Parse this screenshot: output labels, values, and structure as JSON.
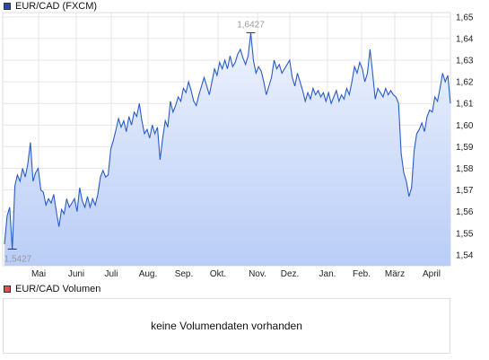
{
  "price_legend": {
    "label": "EUR/CAD (FXCM)",
    "color": "#2a4aa0"
  },
  "volume_legend": {
    "label": "EUR/CAD Volumen",
    "color": "#e05050"
  },
  "volume_panel": {
    "message": "keine Volumendaten vorhanden"
  },
  "chart_data": {
    "type": "area",
    "title": "EUR/CAD (FXCM)",
    "x_ticks": [
      "Mai",
      "Juni",
      "Juli",
      "Aug.",
      "Sep.",
      "Okt.",
      "Nov.",
      "Dez.",
      "Jan.",
      "Feb.",
      "März",
      "April"
    ],
    "y_ticks": [
      "1,54",
      "1,55",
      "1,56",
      "1,57",
      "1,58",
      "1,59",
      "1,60",
      "1,61",
      "1,62",
      "1,63",
      "1,64",
      "1,65"
    ],
    "ylim": [
      1.535,
      1.652
    ],
    "grid": true,
    "line_color": "#2a5bc8",
    "fill_color_top": "#eef3fd",
    "fill_color_bottom": "#b9cdf6",
    "annotations": [
      {
        "label": "1,6427",
        "x": "Okt."
      },
      {
        "label": "1,5427",
        "x": "start"
      }
    ],
    "series": [
      {
        "values": [
          1.545,
          1.558,
          1.562,
          1.5427,
          1.572,
          1.577,
          1.574,
          1.58,
          1.576,
          1.582,
          1.592,
          1.574,
          1.578,
          1.58,
          1.57,
          1.569,
          1.563,
          1.566,
          1.564,
          1.568,
          1.56,
          1.553,
          1.561,
          1.559,
          1.566,
          1.562,
          1.564,
          1.566,
          1.56,
          1.571,
          1.565,
          1.562,
          1.567,
          1.562,
          1.566,
          1.563,
          1.568,
          1.576,
          1.579,
          1.576,
          1.577,
          1.589,
          1.593,
          1.598,
          1.603,
          1.599,
          1.602,
          1.597,
          1.604,
          1.6,
          1.606,
          1.604,
          1.61,
          1.602,
          1.596,
          1.598,
          1.594,
          1.6,
          1.596,
          1.599,
          1.584,
          1.594,
          1.602,
          1.599,
          1.611,
          1.606,
          1.609,
          1.613,
          1.611,
          1.617,
          1.615,
          1.62,
          1.616,
          1.611,
          1.609,
          1.614,
          1.618,
          1.622,
          1.618,
          1.614,
          1.62,
          1.626,
          1.623,
          1.629,
          1.626,
          1.63,
          1.626,
          1.632,
          1.627,
          1.629,
          1.633,
          1.635,
          1.631,
          1.628,
          1.632,
          1.6427,
          1.63,
          1.624,
          1.627,
          1.625,
          1.62,
          1.614,
          1.618,
          1.622,
          1.63,
          1.626,
          1.628,
          1.624,
          1.626,
          1.628,
          1.63,
          1.622,
          1.618,
          1.624,
          1.62,
          1.616,
          1.611,
          1.615,
          1.612,
          1.617,
          1.614,
          1.616,
          1.613,
          1.615,
          1.611,
          1.615,
          1.61,
          1.613,
          1.616,
          1.611,
          1.614,
          1.612,
          1.617,
          1.614,
          1.62,
          1.627,
          1.624,
          1.629,
          1.626,
          1.62,
          1.624,
          1.635,
          1.624,
          1.612,
          1.617,
          1.615,
          1.613,
          1.617,
          1.614,
          1.616,
          1.614,
          1.613,
          1.61,
          1.587,
          1.578,
          1.574,
          1.567,
          1.571,
          1.588,
          1.596,
          1.598,
          1.601,
          1.597,
          1.604,
          1.607,
          1.606,
          1.613,
          1.611,
          1.617,
          1.624,
          1.62,
          1.623,
          1.61
        ]
      }
    ]
  }
}
